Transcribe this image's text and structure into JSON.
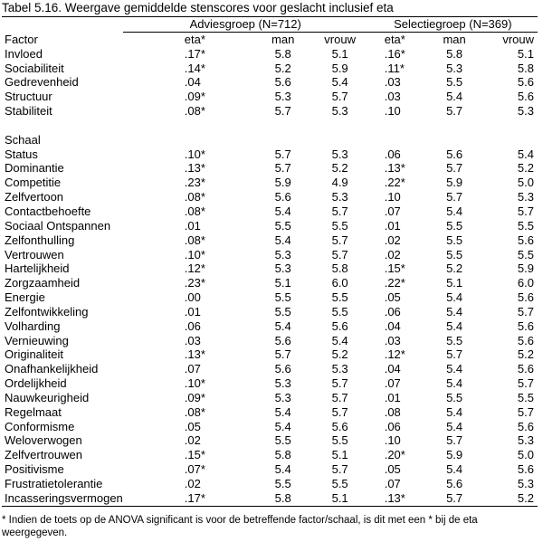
{
  "caption": "Tabel 5.16. Weergave gemiddelde stenscores voor geslacht inclusief eta",
  "groups": {
    "advies": "Adviesgroep (N=712)",
    "selectie": "Selectiegroep (N=369)"
  },
  "headers": {
    "factor": "Factor",
    "eta": "eta*",
    "man": "man",
    "vrouw": "vrouw"
  },
  "factor_rows": [
    [
      "Invloed",
      ".17*",
      "5.8",
      "5.1",
      ".16*",
      "5.8",
      "5.1"
    ],
    [
      "Sociabiliteit",
      ".14*",
      "5.2",
      "5.9",
      ".11*",
      "5.3",
      "5.8"
    ],
    [
      "Gedrevenheid",
      ".04",
      "5.6",
      "5.4",
      ".03",
      "5.5",
      "5.6"
    ],
    [
      "Structuur",
      ".09*",
      "5.3",
      "5.7",
      ".03",
      "5.4",
      "5.6"
    ],
    [
      "Stabiliteit",
      ".08*",
      "5.7",
      "5.3",
      ".10",
      "5.7",
      "5.3"
    ]
  ],
  "schaal_label": "Schaal",
  "schaal_rows": [
    [
      "Status",
      ".10*",
      "5.7",
      "5.3",
      ".06",
      "5.6",
      "5.4"
    ],
    [
      "Dominantie",
      ".13*",
      "5.7",
      "5.2",
      ".13*",
      "5.7",
      "5.2"
    ],
    [
      "Competitie",
      ".23*",
      "5.9",
      "4.9",
      ".22*",
      "5.9",
      "5.0"
    ],
    [
      "Zelfvertoon",
      ".08*",
      "5.6",
      "5.3",
      ".10",
      "5.7",
      "5.3"
    ],
    [
      "Contactbehoefte",
      ".08*",
      "5.4",
      "5.7",
      ".07",
      "5.4",
      "5.7"
    ],
    [
      "Sociaal Ontspannen",
      ".01",
      "5.5",
      "5.5",
      ".01",
      "5.5",
      "5.5"
    ],
    [
      "Zelfonthulling",
      ".08*",
      "5.4",
      "5.7",
      ".02",
      "5.5",
      "5.6"
    ],
    [
      "Vertrouwen",
      ".10*",
      "5.3",
      "5.7",
      ".02",
      "5.5",
      "5.5"
    ],
    [
      "Hartelijkheid",
      ".12*",
      "5.3",
      "5.8",
      ".15*",
      "5.2",
      "5.9"
    ],
    [
      "Zorgzaamheid",
      ".23*",
      "5.1",
      "6.0",
      ".22*",
      "5.1",
      "6.0"
    ],
    [
      "Energie",
      ".00",
      "5.5",
      "5.5",
      ".05",
      "5.4",
      "5.6"
    ],
    [
      "Zelfontwikkeling",
      ".01",
      "5.5",
      "5.5",
      ".06",
      "5.4",
      "5.7"
    ],
    [
      "Volharding",
      ".06",
      "5.4",
      "5.6",
      ".04",
      "5.4",
      "5.6"
    ],
    [
      "Vernieuwing",
      ".03",
      "5.6",
      "5.4",
      ".03",
      "5.5",
      "5.6"
    ],
    [
      "Originaliteit",
      ".13*",
      "5.7",
      "5.2",
      ".12*",
      "5.7",
      "5.2"
    ],
    [
      "Onafhankelijkheid",
      ".07",
      "5.6",
      "5.3",
      ".04",
      "5.4",
      "5.6"
    ],
    [
      "Ordelijkheid",
      ".10*",
      "5.3",
      "5.7",
      ".07",
      "5.4",
      "5.7"
    ],
    [
      "Nauwkeurigheid",
      ".09*",
      "5.3",
      "5.7",
      ".01",
      "5.5",
      "5.5"
    ],
    [
      "Regelmaat",
      ".08*",
      "5.4",
      "5.7",
      ".08",
      "5.4",
      "5.7"
    ],
    [
      "Conformisme",
      ".05",
      "5.4",
      "5.6",
      ".06",
      "5.4",
      "5.6"
    ],
    [
      "Weloverwogen",
      ".02",
      "5.5",
      "5.5",
      ".10",
      "5.7",
      "5.3"
    ],
    [
      "Zelfvertrouwen",
      ".15*",
      "5.8",
      "5.1",
      ".20*",
      "5.9",
      "5.0"
    ],
    [
      "Positivisme",
      ".07*",
      "5.4",
      "5.7",
      ".05",
      "5.4",
      "5.6"
    ],
    [
      "Frustratietolerantie",
      ".02",
      "5.5",
      "5.5",
      ".07",
      "5.6",
      "5.3"
    ],
    [
      "Incasseringsvermogen",
      ".17*",
      "5.8",
      "5.1",
      ".13*",
      "5.7",
      "5.2"
    ]
  ],
  "footnote": "* Indien de toets op de ANOVA significant is voor de betreffende factor/schaal, is dit met een * bij de eta weergegeven."
}
